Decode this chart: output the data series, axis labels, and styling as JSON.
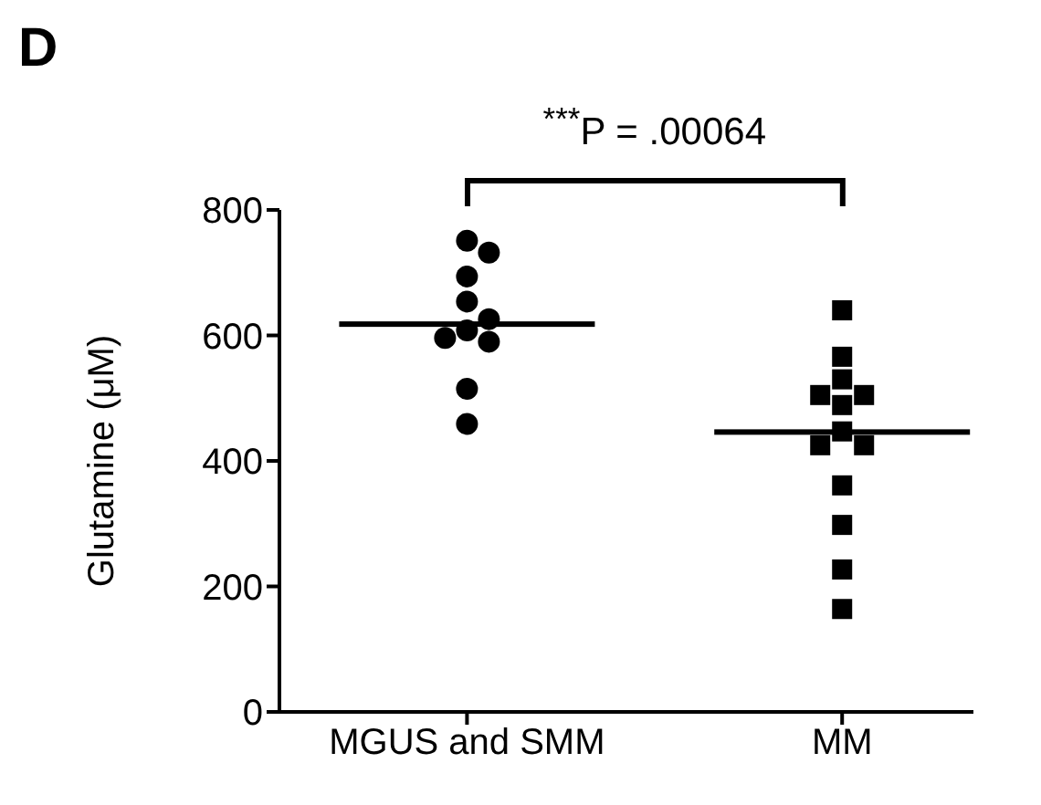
{
  "chart_data": {
    "type": "scatter",
    "title": "D",
    "ylabel": "Glutamine (μM)",
    "annotations": [
      "$^{***}$P = .00064"
    ],
    "categories": [
      "MGUS and SMM",
      "MM"
    ],
    "ylim": [
      0,
      800
    ],
    "yticks": [
      0,
      200,
      400,
      600,
      800
    ],
    "grid": false,
    "legend": false,
    "series": [
      {
        "marker": "circle",
        "color": "#000000",
        "x": [
          "MGUS and SMM",
          "MGUS and SMM",
          "MGUS and SMM",
          "MGUS and SMM",
          "MGUS and SMM",
          "MGUS and SMM",
          "MGUS and SMM",
          "MGUS and SMM",
          "MGUS and SMM",
          "MGUS and SMM"
        ],
        "values": [
          751,
          732,
          694,
          654,
          626,
          608,
          590,
          596,
          515,
          459
        ]
      },
      {
        "marker": "square",
        "color": "#000000",
        "x": [
          "MM",
          "MM",
          "MM",
          "MM",
          "MM",
          "MM",
          "MM",
          "MM",
          "MM",
          "MM",
          "MM",
          "MM",
          "MM"
        ],
        "values": [
          640,
          566,
          530,
          505,
          489,
          505,
          447,
          425,
          425,
          361,
          298,
          227,
          164
        ]
      },
      {
        "type": "box",
        "color": "#000000",
        "boxes": [
          {
            "low": 618,
            "q1": 618,
            "median": 618,
            "q3": 618,
            "high": 618
          },
          {
            "low": 446,
            "q1": 446,
            "median": 446,
            "q3": 446,
            "high": 446
          }
        ]
      }
    ]
  }
}
